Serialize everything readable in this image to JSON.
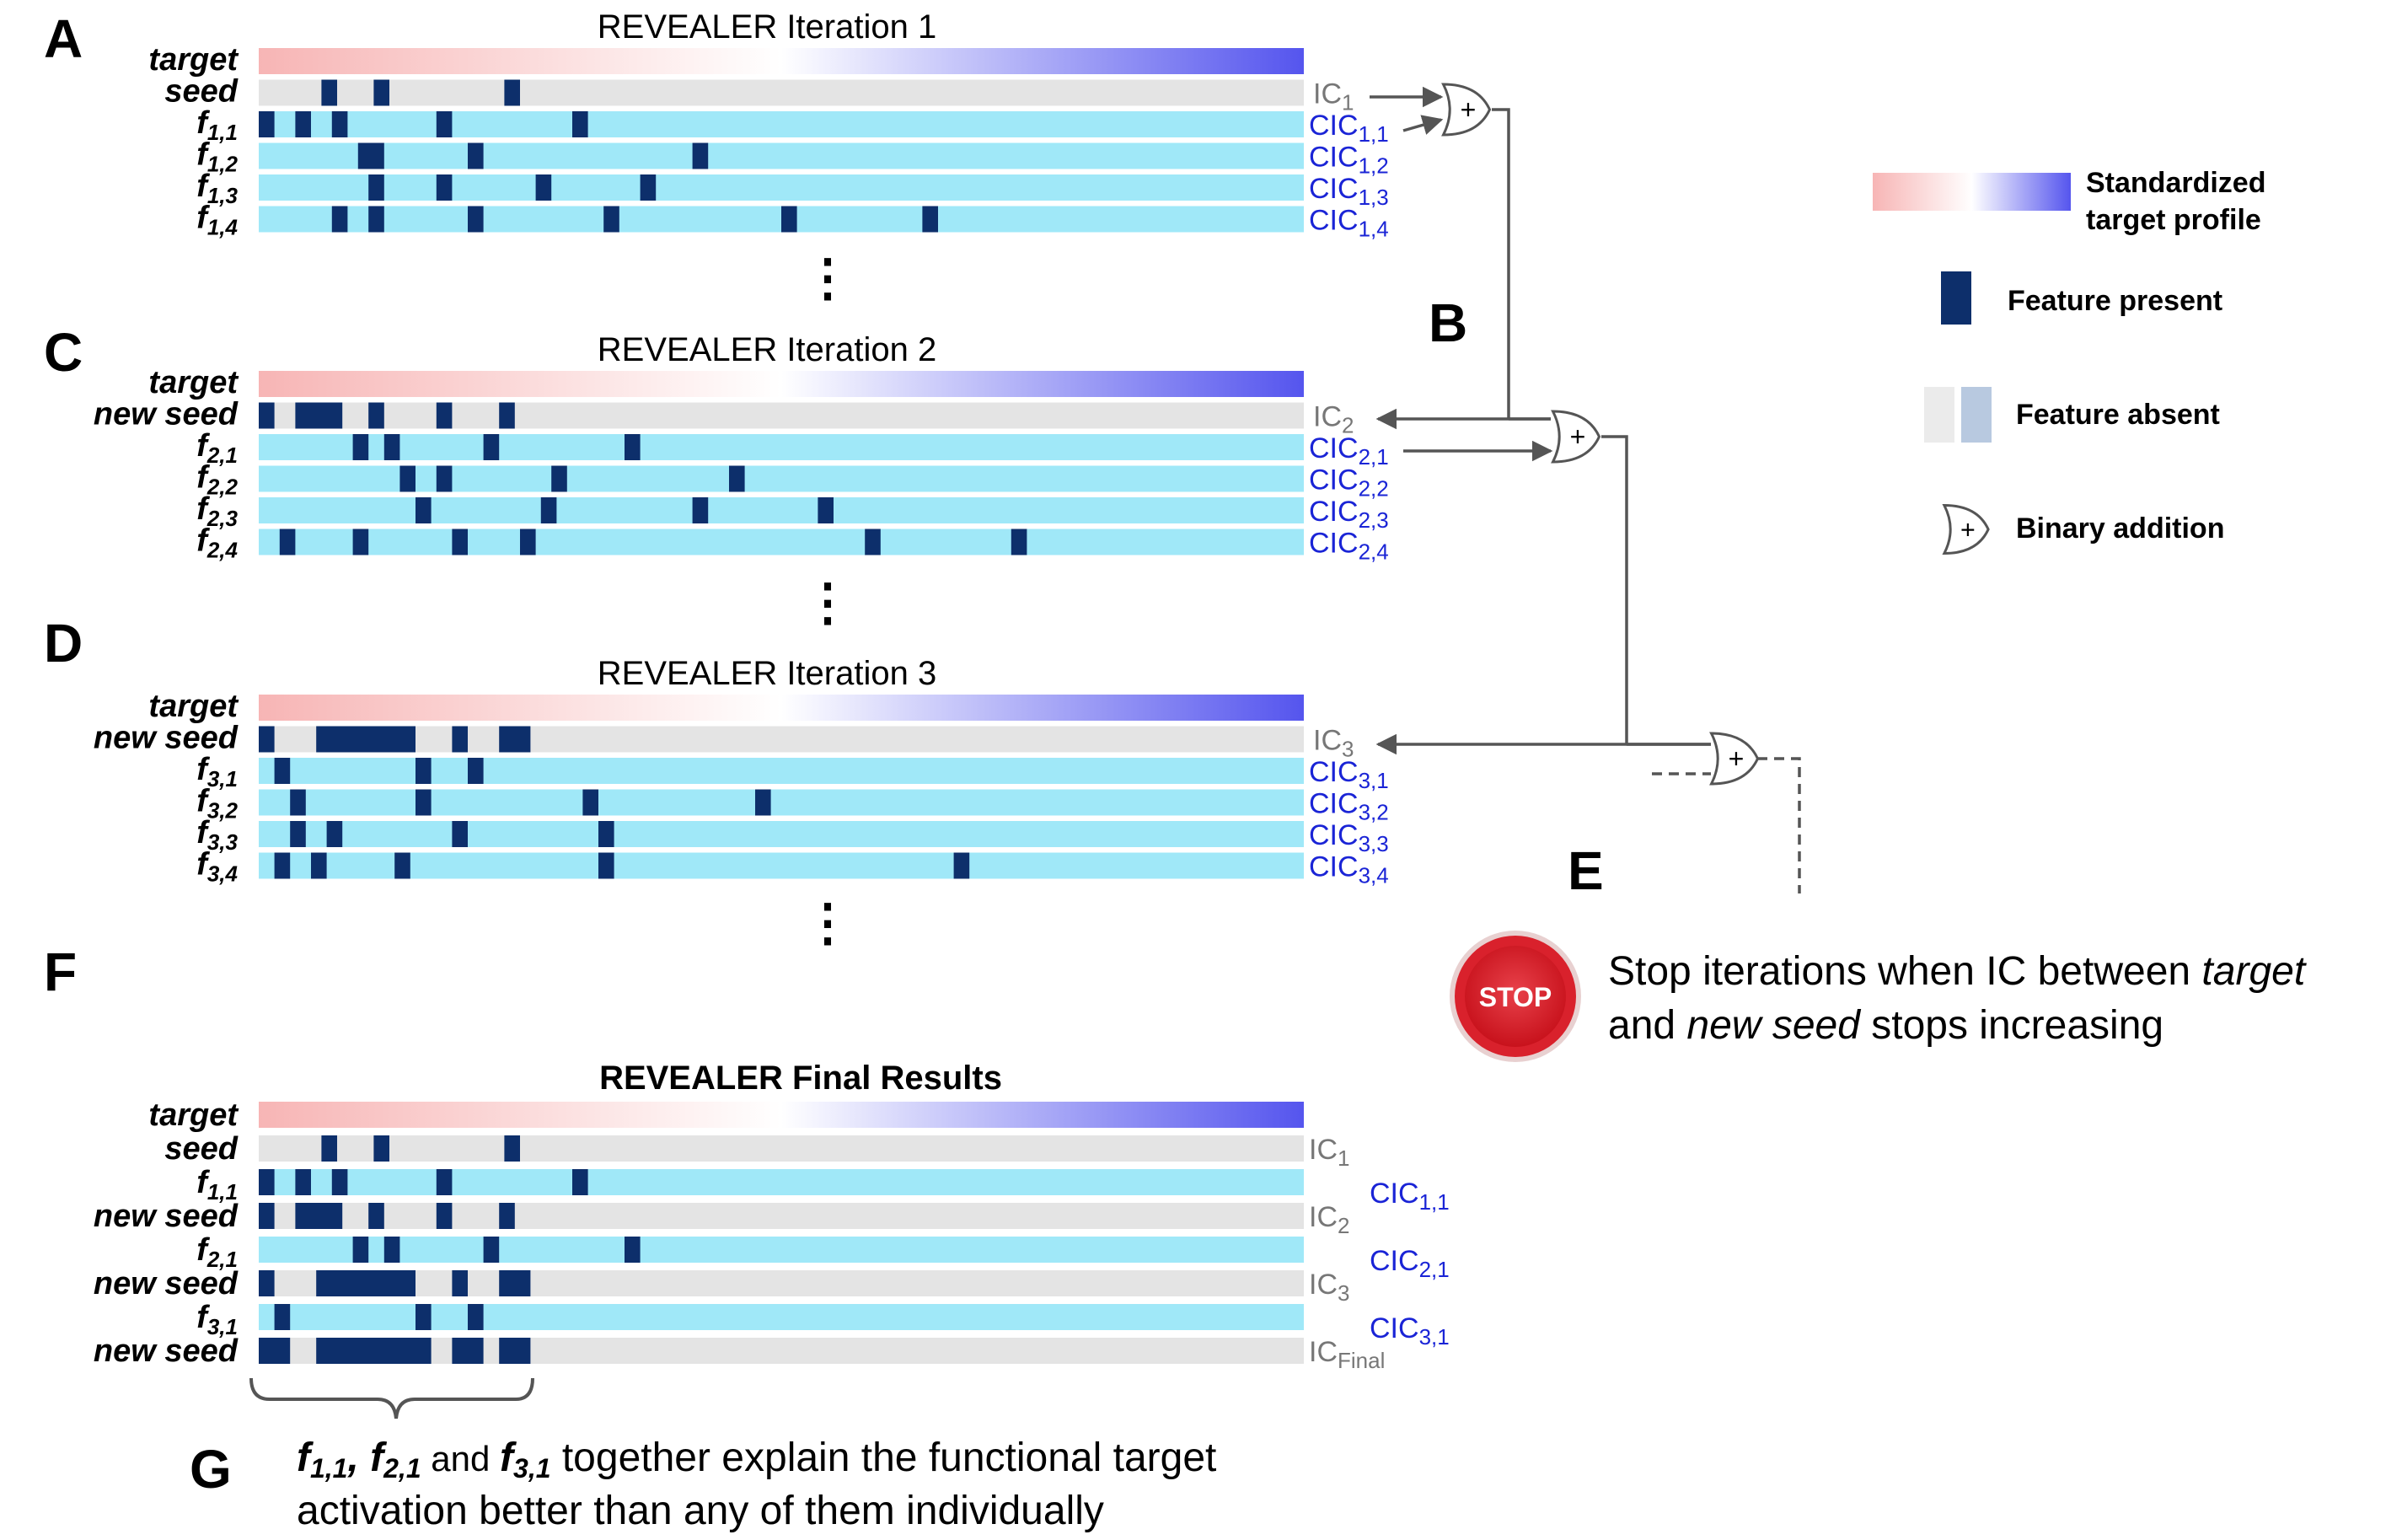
{
  "colors": {
    "target_gradient": [
      "#f7b5b5",
      "#ffffff",
      "#5555ee"
    ],
    "seed_bg": "#e4e4e4",
    "feature_bg": "#a0e8f8",
    "feature_present": "#0d2f6b",
    "cic": "#1a24d6",
    "ic": "#777777",
    "stop_red": "#d9212c"
  },
  "panels": {
    "A": "A",
    "B": "B",
    "C": "C",
    "D": "D",
    "E": "E",
    "F": "F",
    "G": "G"
  },
  "iterations": [
    {
      "title": "REVEALER Iteration 1",
      "seed_label": "seed",
      "seed_marks": [
        [
          0.06,
          0.075
        ],
        [
          0.11,
          0.125
        ],
        [
          0.235,
          0.25
        ]
      ],
      "ic": {
        "base": "IC",
        "sub": "1"
      },
      "features": [
        {
          "name": "f",
          "sub": "1,1",
          "cic": {
            "base": "CIC",
            "sub": "1,1"
          },
          "marks": [
            [
              0,
              0.015
            ],
            [
              0.035,
              0.05
            ],
            [
              0.07,
              0.085
            ],
            [
              0.17,
              0.185
            ],
            [
              0.3,
              0.315
            ]
          ]
        },
        {
          "name": "f",
          "sub": "1,2",
          "cic": {
            "base": "CIC",
            "sub": "1,2"
          },
          "marks": [
            [
              0.095,
              0.12
            ],
            [
              0.2,
              0.215
            ],
            [
              0.415,
              0.43
            ]
          ]
        },
        {
          "name": "f",
          "sub": "1,3",
          "cic": {
            "base": "CIC",
            "sub": "1,3"
          },
          "marks": [
            [
              0.105,
              0.12
            ],
            [
              0.17,
              0.185
            ],
            [
              0.265,
              0.28
            ],
            [
              0.365,
              0.38
            ]
          ]
        },
        {
          "name": "f",
          "sub": "1,4",
          "cic": {
            "base": "CIC",
            "sub": "1,4"
          },
          "marks": [
            [
              0.07,
              0.085
            ],
            [
              0.105,
              0.12
            ],
            [
              0.2,
              0.215
            ],
            [
              0.33,
              0.345
            ],
            [
              0.5,
              0.515
            ],
            [
              0.635,
              0.65
            ]
          ]
        }
      ]
    },
    {
      "title": "REVEALER Iteration 2",
      "seed_label": "new seed",
      "seed_marks": [
        [
          0,
          0.015
        ],
        [
          0.035,
          0.08
        ],
        [
          0.105,
          0.12
        ],
        [
          0.17,
          0.185
        ],
        [
          0.23,
          0.245
        ]
      ],
      "ic": {
        "base": "IC",
        "sub": "2"
      },
      "features": [
        {
          "name": "f",
          "sub": "2,1",
          "cic": {
            "base": "CIC",
            "sub": "2,1"
          },
          "marks": [
            [
              0.09,
              0.105
            ],
            [
              0.12,
              0.135
            ],
            [
              0.215,
              0.23
            ],
            [
              0.35,
              0.365
            ]
          ]
        },
        {
          "name": "f",
          "sub": "2,2",
          "cic": {
            "base": "CIC",
            "sub": "2,2"
          },
          "marks": [
            [
              0.135,
              0.15
            ],
            [
              0.17,
              0.185
            ],
            [
              0.28,
              0.295
            ],
            [
              0.45,
              0.465
            ]
          ]
        },
        {
          "name": "f",
          "sub": "2,3",
          "cic": {
            "base": "CIC",
            "sub": "2,3"
          },
          "marks": [
            [
              0.15,
              0.165
            ],
            [
              0.27,
              0.285
            ],
            [
              0.415,
              0.43
            ],
            [
              0.535,
              0.55
            ]
          ]
        },
        {
          "name": "f",
          "sub": "2,4",
          "cic": {
            "base": "CIC",
            "sub": "2,4"
          },
          "marks": [
            [
              0.02,
              0.035
            ],
            [
              0.09,
              0.105
            ],
            [
              0.185,
              0.2
            ],
            [
              0.25,
              0.265
            ],
            [
              0.58,
              0.595
            ],
            [
              0.72,
              0.735
            ]
          ]
        }
      ]
    },
    {
      "title": "REVEALER Iteration 3",
      "seed_label": "new seed",
      "seed_marks": [
        [
          0,
          0.015
        ],
        [
          0.055,
          0.15
        ],
        [
          0.185,
          0.2
        ],
        [
          0.23,
          0.26
        ]
      ],
      "ic": {
        "base": "IC",
        "sub": "3"
      },
      "features": [
        {
          "name": "f",
          "sub": "3,1",
          "cic": {
            "base": "CIC",
            "sub": "3,1"
          },
          "marks": [
            [
              0.015,
              0.03
            ],
            [
              0.15,
              0.165
            ],
            [
              0.2,
              0.215
            ]
          ]
        },
        {
          "name": "f",
          "sub": "3,2",
          "cic": {
            "base": "CIC",
            "sub": "3,2"
          },
          "marks": [
            [
              0.03,
              0.045
            ],
            [
              0.15,
              0.165
            ],
            [
              0.31,
              0.325
            ],
            [
              0.475,
              0.49
            ]
          ]
        },
        {
          "name": "f",
          "sub": "3,3",
          "cic": {
            "base": "CIC",
            "sub": "3,3"
          },
          "marks": [
            [
              0.03,
              0.045
            ],
            [
              0.065,
              0.08
            ],
            [
              0.185,
              0.2
            ],
            [
              0.325,
              0.34
            ]
          ]
        },
        {
          "name": "f",
          "sub": "3,4",
          "cic": {
            "base": "CIC",
            "sub": "3,4"
          },
          "marks": [
            [
              0.015,
              0.03
            ],
            [
              0.05,
              0.065
            ],
            [
              0.13,
              0.145
            ],
            [
              0.325,
              0.34
            ],
            [
              0.665,
              0.68
            ]
          ]
        }
      ]
    }
  ],
  "row_target_label": "target",
  "final": {
    "title": "REVEALER Final Results",
    "rows": [
      {
        "label": "target",
        "sub": "",
        "kind": "target",
        "ic": null,
        "cic": null,
        "marks": []
      },
      {
        "label": "seed",
        "sub": "",
        "kind": "seed",
        "ic": {
          "base": "IC",
          "sub": "1"
        },
        "cic": null,
        "marks": [
          [
            0.06,
            0.075
          ],
          [
            0.11,
            0.125
          ],
          [
            0.235,
            0.25
          ]
        ]
      },
      {
        "label": "f",
        "sub": "1,1",
        "kind": "feature",
        "ic": null,
        "cic": {
          "base": "CIC",
          "sub": "1,1"
        },
        "marks": [
          [
            0,
            0.015
          ],
          [
            0.035,
            0.05
          ],
          [
            0.07,
            0.085
          ],
          [
            0.17,
            0.185
          ],
          [
            0.3,
            0.315
          ]
        ]
      },
      {
        "label": "new seed",
        "sub": "",
        "kind": "seed",
        "ic": {
          "base": "IC",
          "sub": "2"
        },
        "cic": null,
        "marks": [
          [
            0,
            0.015
          ],
          [
            0.035,
            0.08
          ],
          [
            0.105,
            0.12
          ],
          [
            0.17,
            0.185
          ],
          [
            0.23,
            0.245
          ]
        ]
      },
      {
        "label": "f",
        "sub": "2,1",
        "kind": "feature",
        "ic": null,
        "cic": {
          "base": "CIC",
          "sub": "2,1"
        },
        "marks": [
          [
            0.09,
            0.105
          ],
          [
            0.12,
            0.135
          ],
          [
            0.215,
            0.23
          ],
          [
            0.35,
            0.365
          ]
        ]
      },
      {
        "label": "new seed",
        "sub": "",
        "kind": "seed",
        "ic": {
          "base": "IC",
          "sub": "3"
        },
        "cic": null,
        "marks": [
          [
            0,
            0.015
          ],
          [
            0.055,
            0.15
          ],
          [
            0.185,
            0.2
          ],
          [
            0.23,
            0.26
          ]
        ]
      },
      {
        "label": "f",
        "sub": "3,1",
        "kind": "feature",
        "ic": null,
        "cic": {
          "base": "CIC",
          "sub": "3,1"
        },
        "marks": [
          [
            0.015,
            0.03
          ],
          [
            0.15,
            0.165
          ],
          [
            0.2,
            0.215
          ]
        ]
      },
      {
        "label": "new seed",
        "sub": "",
        "kind": "seed",
        "ic": {
          "base": "IC",
          "sub": "Final"
        },
        "cic": null,
        "marks": [
          [
            0,
            0.03
          ],
          [
            0.055,
            0.165
          ],
          [
            0.185,
            0.215
          ],
          [
            0.23,
            0.26
          ]
        ]
      }
    ]
  },
  "legend": {
    "target_profile": "Standardized target profile",
    "target_profile_line1": "Standardized",
    "target_profile_line2": "target profile",
    "feature_present": "Feature present",
    "feature_absent": "Feature absent",
    "binary_addition": "Binary addition"
  },
  "stop": {
    "badge": "STOP",
    "line1_pre": "Stop iterations when IC between ",
    "line1_em": "target",
    "line2_pre": "and ",
    "line2_em": "new seed",
    "line2_post": " stops increasing"
  },
  "conclusion": {
    "f11": "f",
    "f11_sub": "1,1",
    "sep1": ", ",
    "f21": "f",
    "f21_sub": "2,1",
    "and": " and ",
    "f31": "f",
    "f31_sub": "3,1",
    "line1_post": " together explain the functional target",
    "line2": "activation better than any of them individually"
  },
  "plus": "+",
  "dots": "⋮"
}
